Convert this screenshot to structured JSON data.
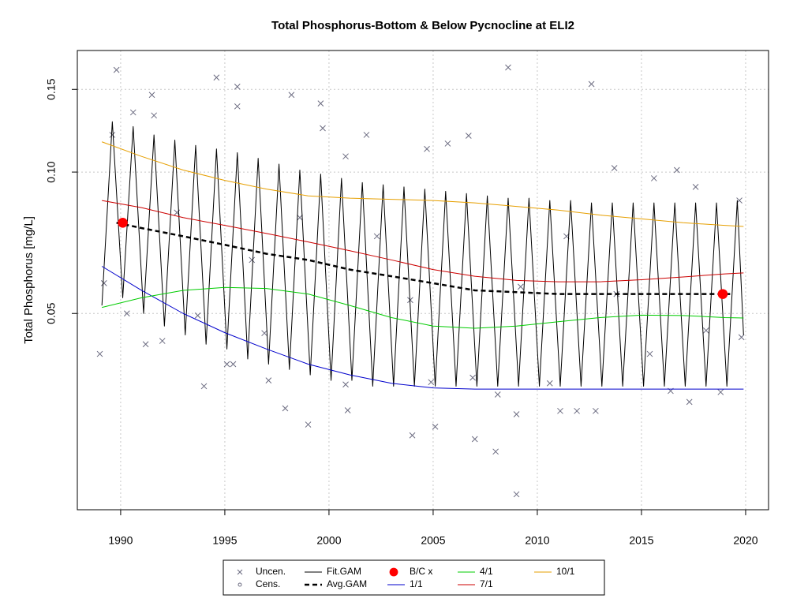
{
  "chart_data": {
    "type": "line",
    "title": "Total Phosphorus-Bottom & Below Pycnocline at ELI2",
    "y_label": "Total Phosphorus [mg/L]",
    "log_y": true,
    "grid": true,
    "xlim": [
      1987.92,
      2021.1
    ],
    "xticks": [
      1990,
      1995,
      2000,
      2005,
      2010,
      2015,
      2020
    ],
    "ylim": [
      0.0191,
      0.1815
    ],
    "yticks": [
      0.05,
      {
        "value": 0.1,
        "label": "0.10"
      },
      0.15
    ],
    "series": [
      {
        "name": "Uncen.",
        "kind": "points",
        "marker": "x",
        "color": "#6b6b80",
        "x": [
          1989.0,
          1989.8,
          1994.6,
          1995.6,
          1995.6,
          1998.2,
          1999.6,
          1999.7,
          1991.5,
          1991.6,
          1990.6,
          2008.6,
          2012.6,
          1994.0,
          1999.0,
          2004.0,
          2005.1,
          2007.0,
          2008.0,
          2009.0,
          2009.0,
          1997.9,
          2000.9,
          2006.7,
          2005.7,
          2004.7,
          2001.8,
          2000.8,
          2013.7,
          2015.6,
          2016.7,
          2017.6,
          2017.3,
          2012.8,
          2011.1,
          2011.9,
          2018.8,
          2019.8,
          2019.7,
          1989.6,
          1992.0,
          1991.2,
          1997.1,
          1995.1,
          1995.4,
          1996.9,
          1993.7,
          2000.8,
          2004.9,
          2006.9,
          2008.1,
          2010.6,
          2015.4,
          2016.4,
          2018.1,
          2009.2,
          2013.8,
          2011.4,
          2003.9,
          2002.3,
          1998.6,
          1996.3,
          1992.7,
          1989.2,
          1990.3
        ],
        "values": [
          0.041,
          0.165,
          0.159,
          0.152,
          0.138,
          0.146,
          0.14,
          0.124,
          0.146,
          0.132,
          0.134,
          0.167,
          0.154,
          0.035,
          0.029,
          0.0275,
          0.0287,
          0.027,
          0.0254,
          0.0206,
          0.0305,
          0.0314,
          0.0311,
          0.1195,
          0.115,
          0.112,
          0.12,
          0.108,
          0.102,
          0.097,
          0.101,
          0.093,
          0.0324,
          0.031,
          0.031,
          0.031,
          0.034,
          0.0445,
          0.087,
          0.12,
          0.0437,
          0.043,
          0.036,
          0.039,
          0.039,
          0.0454,
          0.0495,
          0.0353,
          0.0357,
          0.0365,
          0.0336,
          0.0355,
          0.041,
          0.0342,
          0.046,
          0.057,
          0.055,
          0.073,
          0.0534,
          0.073,
          0.08,
          0.065,
          0.082,
          0.058,
          0.05
        ]
      },
      {
        "name": "Cens.",
        "kind": "points",
        "marker": "circle",
        "color": "#6b6b80",
        "x": [],
        "values": []
      },
      {
        "name": "Fit.GAM",
        "kind": "line",
        "color": "#000000",
        "width": 1,
        "x": [
          1989.1,
          1989.6,
          1990.1,
          1990.6,
          1991.1,
          1991.6,
          1992.1,
          1992.6,
          1993.1,
          1993.6,
          1994.1,
          1994.6,
          1995.1,
          1995.6,
          1996.1,
          1996.6,
          1997.1,
          1997.6,
          1998.1,
          1998.6,
          1999.1,
          1999.6,
          2000.1,
          2000.6,
          2001.1,
          2001.6,
          2002.1,
          2002.6,
          2003.1,
          2003.6,
          2004.1,
          2004.6,
          2005.1,
          2005.6,
          2006.1,
          2006.6,
          2007.1,
          2007.6,
          2008.1,
          2008.6,
          2009.1,
          2009.6,
          2010.1,
          2010.6,
          2011.1,
          2011.6,
          2012.1,
          2012.6,
          2013.1,
          2013.6,
          2014.1,
          2014.6,
          2015.1,
          2015.6,
          2016.1,
          2016.6,
          2017.1,
          2017.6,
          2018.1,
          2018.6,
          2019.1,
          2019.6,
          2019.9
        ],
        "values": [
          0.052,
          0.128,
          0.054,
          0.125,
          0.05,
          0.12,
          0.047,
          0.117,
          0.045,
          0.114,
          0.043,
          0.112,
          0.042,
          0.11,
          0.04,
          0.107,
          0.039,
          0.104,
          0.038,
          0.101,
          0.037,
          0.099,
          0.036,
          0.097,
          0.036,
          0.095,
          0.035,
          0.094,
          0.035,
          0.093,
          0.035,
          0.092,
          0.035,
          0.091,
          0.035,
          0.09,
          0.035,
          0.089,
          0.035,
          0.088,
          0.035,
          0.088,
          0.035,
          0.087,
          0.035,
          0.087,
          0.035,
          0.086,
          0.035,
          0.086,
          0.035,
          0.086,
          0.035,
          0.086,
          0.035,
          0.086,
          0.035,
          0.086,
          0.035,
          0.086,
          0.035,
          0.087,
          0.045
        ]
      },
      {
        "name": "Avg.GAM",
        "kind": "line",
        "dash": true,
        "color": "#000000",
        "width": 2.5,
        "x": [
          1989.8,
          1991,
          1993,
          1995,
          1997,
          1999,
          2001,
          2003,
          2005,
          2007,
          2009,
          2011,
          2013,
          2015,
          2017,
          2019.4
        ],
        "values": [
          0.078,
          0.076,
          0.073,
          0.07,
          0.067,
          0.065,
          0.062,
          0.06,
          0.058,
          0.056,
          0.0555,
          0.055,
          0.055,
          0.055,
          0.055,
          0.055
        ]
      },
      {
        "name": "B/C x",
        "kind": "points",
        "marker": "dot",
        "color": "#ff0000",
        "x": [
          1990.1,
          2018.9
        ],
        "values": [
          0.078,
          0.055
        ]
      },
      {
        "name": "1/1",
        "kind": "line",
        "color": "#0000cc",
        "width": 1,
        "x": [
          1989.1,
          1991,
          1993,
          1995,
          1997,
          1999,
          2001,
          2003,
          2005,
          2007,
          2009,
          2011,
          2013,
          2015,
          2017,
          2019,
          2019.9
        ],
        "values": [
          0.063,
          0.056,
          0.05,
          0.0455,
          0.042,
          0.039,
          0.037,
          0.0355,
          0.0347,
          0.0345,
          0.0345,
          0.0345,
          0.0345,
          0.0345,
          0.0345,
          0.0345,
          0.0345
        ]
      },
      {
        "name": "4/1",
        "kind": "line",
        "color": "#00cc00",
        "width": 1,
        "x": [
          1989.1,
          1991,
          1993,
          1995,
          1997,
          1999,
          2001,
          2003,
          2005,
          2007,
          2009,
          2011,
          2013,
          2015,
          2017,
          2019,
          2019.9
        ],
        "values": [
          0.0515,
          0.054,
          0.056,
          0.0568,
          0.0565,
          0.055,
          0.052,
          0.049,
          0.047,
          0.0465,
          0.047,
          0.048,
          0.049,
          0.0496,
          0.0495,
          0.049,
          0.0489
        ]
      },
      {
        "name": "7/1",
        "kind": "line",
        "color": "#cc0000",
        "width": 1,
        "x": [
          1989.1,
          1991,
          1993,
          1995,
          1997,
          1999,
          2001,
          2003,
          2005,
          2007,
          2009,
          2011,
          2013,
          2015,
          2017,
          2019,
          2019.9
        ],
        "values": [
          0.087,
          0.084,
          0.08,
          0.077,
          0.074,
          0.071,
          0.068,
          0.065,
          0.062,
          0.06,
          0.0588,
          0.0584,
          0.0584,
          0.059,
          0.0598,
          0.0607,
          0.061
        ]
      },
      {
        "name": "10/1",
        "kind": "line",
        "color": "#e69f00",
        "width": 1,
        "x": [
          1989.1,
          1991,
          1993,
          1995,
          1997,
          1999,
          2001,
          2003,
          2005,
          2007,
          2009,
          2011,
          2013,
          2015,
          2017,
          2019,
          2019.9
        ],
        "values": [
          0.116,
          0.108,
          0.101,
          0.096,
          0.092,
          0.089,
          0.088,
          0.0875,
          0.087,
          0.086,
          0.0845,
          0.083,
          0.081,
          0.0795,
          0.078,
          0.077,
          0.0766
        ]
      }
    ]
  }
}
